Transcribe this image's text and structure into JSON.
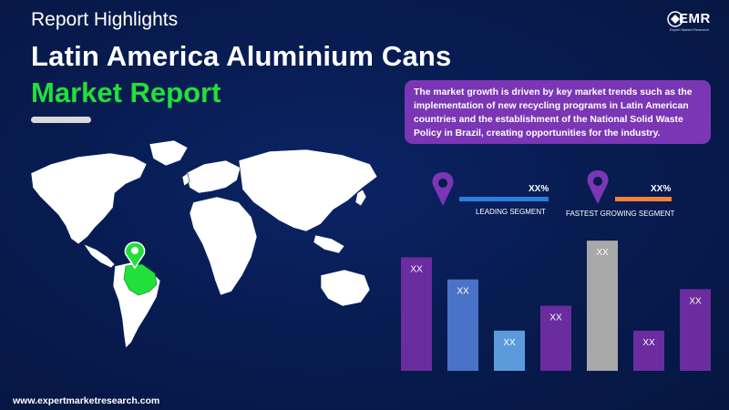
{
  "header": {
    "subtitle": "Report Highlights",
    "title_line1": "Latin America Aluminium Cans",
    "title_line2": "Market Report"
  },
  "logo": {
    "text": "EMR",
    "tagline": "Expert Market Research"
  },
  "description": "The market growth is driven by key market trends such as the implementation of new recycling programs in Latin American countries and the establishment of the National Solid Waste Policy in Brazil, creating opportunities for the industry.",
  "segments": {
    "leading": {
      "value": "XX%",
      "label": "LEADING SEGMENT",
      "color": "#2a7de1"
    },
    "fastest": {
      "value": "XX%",
      "label": "FASTEST GROWING SEGMENT",
      "color": "#f0823a"
    }
  },
  "map": {
    "region_icon": "map-pin-icon",
    "region_color": "#22e03a"
  },
  "chart_data": {
    "type": "bar",
    "categories": [
      "",
      "",
      "",
      "",
      "",
      "",
      ""
    ],
    "values": [
      0.82,
      0.66,
      0.29,
      0.47,
      0.94,
      0.29,
      0.59
    ],
    "value_labels": [
      "XX",
      "XX",
      "XX",
      "XX",
      "XX",
      "XX",
      "XX"
    ],
    "colors": [
      "#6a2c9e",
      "#4a72c8",
      "#5b9bdc",
      "#6a2c9e",
      "#a8a8a8",
      "#6a2c9e",
      "#6a2c9e"
    ]
  },
  "footer": {
    "url": "www.expertmarketresearch.com"
  }
}
